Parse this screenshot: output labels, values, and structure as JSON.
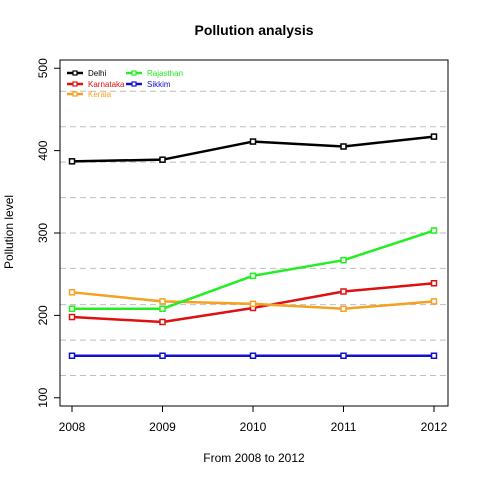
{
  "chart_data": {
    "type": "line",
    "title": "Pollution analysis",
    "xlabel": "From 2008 to 2012",
    "ylabel": "Pollution level",
    "x": [
      2008,
      2009,
      2010,
      2011,
      2012
    ],
    "x_tick_labels": [
      "2008",
      "2009",
      "2010",
      "2011",
      "2012"
    ],
    "ylim": [
      90,
      510
    ],
    "y_ticks": [
      100,
      200,
      300,
      400,
      500
    ],
    "y_tick_labels": [
      "100",
      "200",
      "300",
      "400",
      "500"
    ],
    "grid": {
      "style": "dashed-horizontal",
      "color": "#bebebe",
      "y_values": [
        127,
        170,
        213,
        257,
        300,
        343,
        386,
        429,
        472
      ]
    },
    "legend_position": "top-left",
    "series": [
      {
        "name": "Delhi",
        "color": "#000000",
        "values": [
          387,
          389,
          411,
          405,
          417
        ]
      },
      {
        "name": "Karnataka",
        "color": "#dd1111",
        "values": [
          198,
          192,
          209,
          229,
          239
        ]
      },
      {
        "name": "Kerala",
        "color": "#f5a020",
        "values": [
          228,
          217,
          214,
          208,
          217
        ]
      },
      {
        "name": "Rajasthan",
        "color": "#22ee22",
        "values": [
          208,
          208,
          248,
          267,
          303
        ]
      },
      {
        "name": "Sikkim",
        "color": "#1111cc",
        "values": [
          151,
          151,
          151,
          151,
          151
        ]
      }
    ]
  }
}
